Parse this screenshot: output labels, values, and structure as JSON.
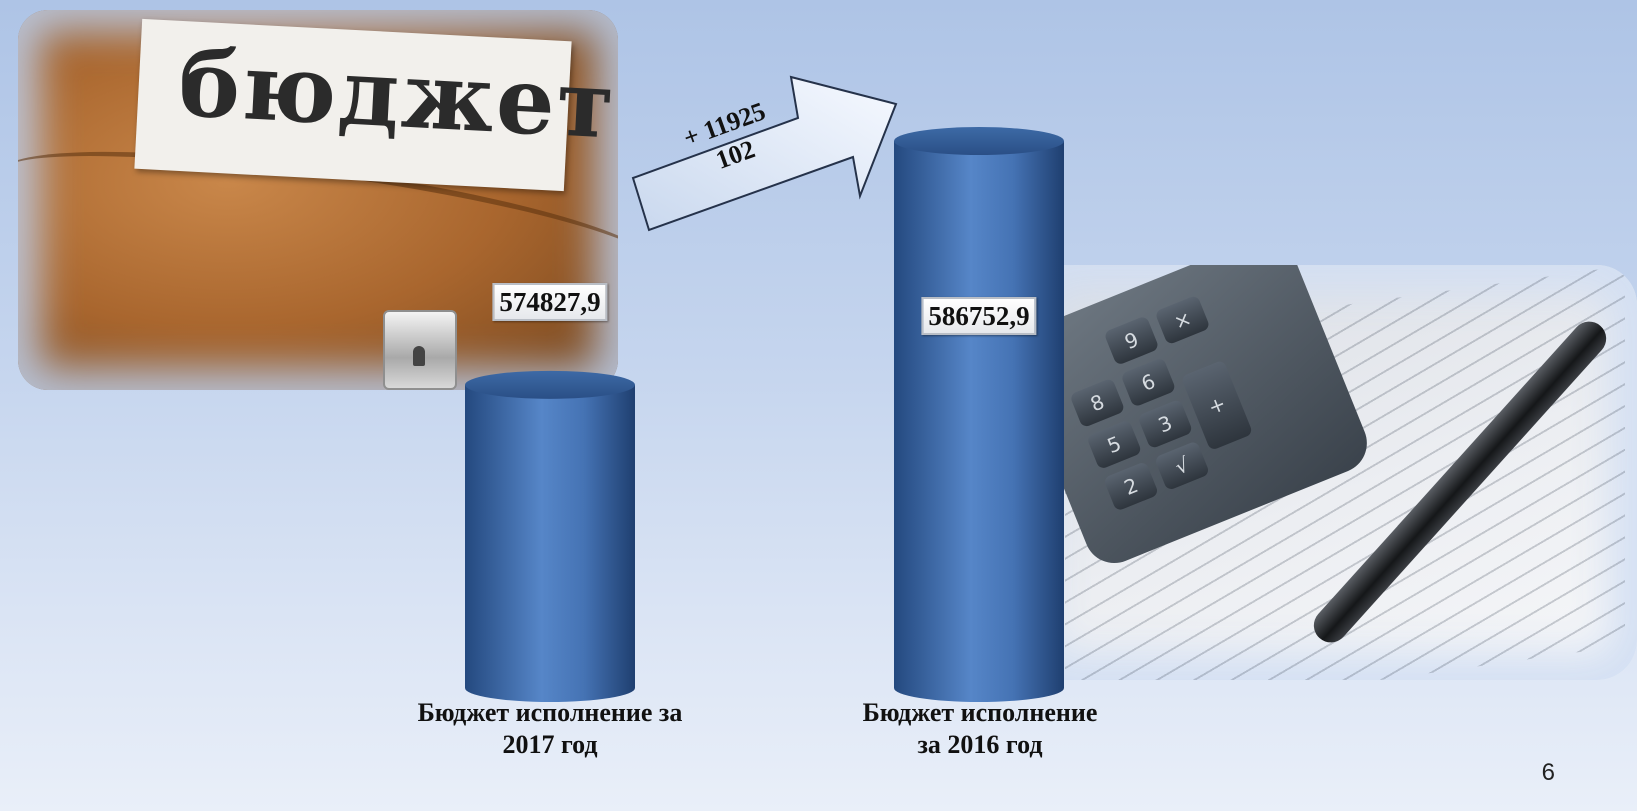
{
  "chart_data": {
    "type": "bar",
    "categories": [
      "Бюджет исполнение за 2017 год",
      "Бюджет исполнение за 2016 год"
    ],
    "category_lines": [
      [
        "Бюджет исполнение за",
        "2017 год"
      ],
      [
        "Бюджет исполнение",
        "за 2016 год"
      ]
    ],
    "values": [
      574827.9,
      586752.9
    ],
    "value_labels": [
      "574827,9",
      "586752,9"
    ],
    "annotation": {
      "line1": "+ 11925",
      "line2": "102"
    },
    "bar_color": "#3e6fb0",
    "title": "",
    "xlabel": "",
    "ylabel": ""
  },
  "decor": {
    "briefcase_label": "бюджет",
    "calculator_keys": [
      "9",
      "×",
      "8",
      "6",
      "5",
      "3",
      "+",
      "2",
      "√"
    ]
  },
  "page_number": "6"
}
